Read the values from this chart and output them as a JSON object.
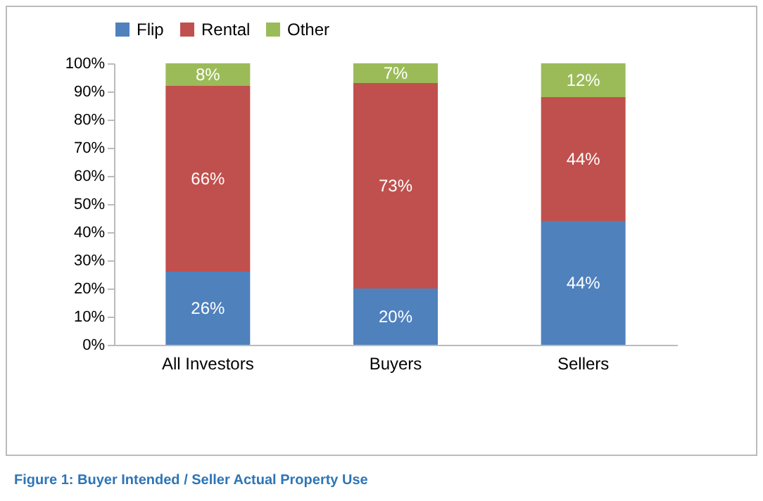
{
  "chart_data": {
    "type": "bar",
    "stacked": true,
    "categories": [
      "All Investors",
      "Buyers",
      "Sellers"
    ],
    "series": [
      {
        "name": "Flip",
        "color": "#4f81bd",
        "values": [
          26,
          20,
          44
        ],
        "value_labels": [
          "26%",
          "20%",
          "44%"
        ]
      },
      {
        "name": "Rental",
        "color": "#c0504d",
        "values": [
          66,
          73,
          44
        ],
        "value_labels": [
          "66%",
          "73%",
          "44%"
        ]
      },
      {
        "name": "Other",
        "color": "#9bbb59",
        "values": [
          8,
          7,
          12
        ],
        "value_labels": [
          "8%",
          "7%",
          "12%"
        ]
      }
    ],
    "ylim": [
      0,
      100
    ],
    "yticks": [
      {
        "value": 0,
        "label": "0%"
      },
      {
        "value": 10,
        "label": "10%"
      },
      {
        "value": 20,
        "label": "20%"
      },
      {
        "value": 30,
        "label": "30%"
      },
      {
        "value": 40,
        "label": "40%"
      },
      {
        "value": 50,
        "label": "50%"
      },
      {
        "value": 60,
        "label": "60%"
      },
      {
        "value": 70,
        "label": "70%"
      },
      {
        "value": 80,
        "label": "80%"
      },
      {
        "value": 90,
        "label": "90%"
      },
      {
        "value": 100,
        "label": "100%"
      }
    ],
    "grid": false,
    "legend": "top",
    "annotations": [
      "Figure 1: Buyer Intended / Seller Actual Property Use"
    ]
  }
}
